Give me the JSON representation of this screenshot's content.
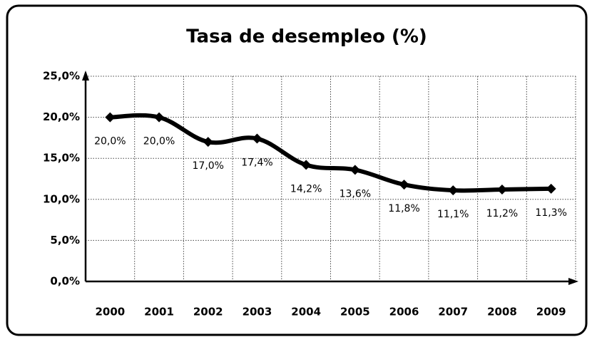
{
  "chart_data": {
    "type": "line",
    "title": "Tasa de desempleo (%)",
    "categories": [
      "2000",
      "2001",
      "2002",
      "2003",
      "2004",
      "2005",
      "2006",
      "2007",
      "2008",
      "2009"
    ],
    "values": [
      20.0,
      20.0,
      17.0,
      17.4,
      14.2,
      13.6,
      11.8,
      11.1,
      11.2,
      11.3
    ],
    "value_labels": [
      "20,0%",
      "20,0%",
      "17,0%",
      "17,4%",
      "14,2%",
      "13,6%",
      "11,8%",
      "11,1%",
      "11,2%",
      "11,3%"
    ],
    "color": "#000000",
    "ylim": [
      0,
      25
    ],
    "yticks": [
      {
        "value": 0,
        "label": "0,0%"
      },
      {
        "value": 5,
        "label": "5,0%"
      },
      {
        "value": 10,
        "label": "10,0%"
      },
      {
        "value": 15,
        "label": "15,0%"
      },
      {
        "value": 20,
        "label": "20,0%"
      },
      {
        "value": 25,
        "label": "25,0%"
      }
    ],
    "grid": true
  }
}
